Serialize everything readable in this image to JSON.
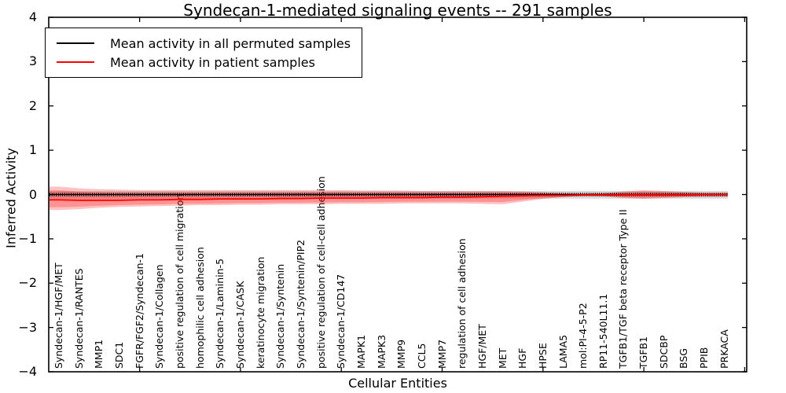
{
  "chart_data": {
    "type": "line",
    "title": "Syndecan-1-mediated signaling events -- 291 samples",
    "xlabel": "Cellular Entities",
    "ylabel": "Inferred Activity",
    "ylim": [
      -4,
      4
    ],
    "yticks": [
      4,
      3,
      2,
      1,
      0,
      -1,
      -2,
      -3,
      -4
    ],
    "xticks_entity_positions": [
      5,
      10,
      15,
      20,
      25,
      30,
      35
    ],
    "grid": false,
    "legend_position": "upper-left",
    "background_color": "#ffffff",
    "categories": [
      "Syndecan-1/HGF/MET",
      "Syndecan-1/RANTES",
      "MMP1",
      "SDC1",
      "FGFR/FGF2/Syndecan-1",
      "Syndecan-1/Collagen",
      "positive regulation of cell migration",
      "homophilic cell adhesion",
      "Syndecan-1/Laminin-5",
      "Syndecan-1/CASK",
      "keratinocyte migration",
      "Syndecan-1/Syntenin",
      "Syndecan-1/Syntenin/PIP2",
      "positive regulation of cell-cell adhesion",
      "Syndecan-1/CD147",
      "MAPK1",
      "MAPK3",
      "MMP9",
      "CCL5",
      "MMP7",
      "regulation of cell adhesion",
      "HGF/MET",
      "MET",
      "HGF",
      "HPSE",
      "LAMA5",
      "mol:PI-4-5-P2",
      "RP11-540L11.1",
      "TGFB1/TGF beta receptor Type II",
      "TGFB1",
      "SDCBP",
      "BSG",
      "PPIB",
      "PRKACA"
    ],
    "series": [
      {
        "name": "Mean activity in all permuted samples",
        "color": "#000000",
        "line_style": "solid-with-tick-markers",
        "band_color": "#999999",
        "band_opacity": 0.38,
        "values": [
          0,
          0,
          0,
          0,
          0,
          0,
          0,
          0,
          0,
          0,
          0,
          0,
          0,
          0,
          0,
          0,
          0,
          0,
          0,
          0,
          0,
          0,
          0,
          0,
          0,
          0,
          0,
          0,
          0,
          0,
          0,
          0,
          0,
          0
        ],
        "band_upper": [
          0.08,
          0.08,
          0.08,
          0.08,
          0.08,
          0.08,
          0.08,
          0.08,
          0.08,
          0.08,
          0.08,
          0.08,
          0.08,
          0.08,
          0.08,
          0.08,
          0.08,
          0.08,
          0.08,
          0.08,
          0.08,
          0.08,
          0.08,
          0.08,
          0.08,
          0.08,
          0.08,
          0.08,
          0.08,
          0.08,
          0.08,
          0.08,
          0.08,
          0.08
        ],
        "band_lower": [
          -0.09,
          -0.09,
          -0.09,
          -0.09,
          -0.09,
          -0.09,
          -0.09,
          -0.09,
          -0.09,
          -0.09,
          -0.09,
          -0.09,
          -0.09,
          -0.09,
          -0.09,
          -0.09,
          -0.09,
          -0.09,
          -0.09,
          -0.09,
          -0.09,
          -0.09,
          -0.09,
          -0.09,
          -0.09,
          -0.09,
          -0.09,
          -0.09,
          -0.09,
          -0.09,
          -0.09,
          -0.09,
          -0.09,
          -0.09
        ]
      },
      {
        "name": "Mean activity in patient samples",
        "color": "#ff0000",
        "line_style": "solid",
        "band_color": "#ff0000",
        "band_opacity": 0.24,
        "band_inner_scale": 0.72,
        "values": [
          -0.12,
          -0.13,
          -0.13,
          -0.13,
          -0.12,
          -0.12,
          -0.11,
          -0.11,
          -0.1,
          -0.1,
          -0.1,
          -0.09,
          -0.09,
          -0.08,
          -0.08,
          -0.08,
          -0.07,
          -0.07,
          -0.07,
          -0.06,
          -0.06,
          -0.05,
          -0.04,
          -0.03,
          -0.02,
          -0.02,
          -0.01,
          -0.01,
          -0.01,
          -0.01,
          -0.01,
          -0.01,
          0.0,
          0.0
        ],
        "band_upper": [
          0.18,
          0.14,
          0.12,
          0.11,
          0.1,
          0.1,
          0.1,
          0.1,
          0.1,
          0.1,
          0.1,
          0.1,
          0.1,
          0.1,
          0.1,
          0.09,
          0.09,
          0.09,
          0.08,
          0.08,
          0.08,
          0.08,
          0.08,
          0.07,
          0.05,
          0.03,
          0.02,
          0.03,
          0.07,
          0.1,
          0.08,
          0.06,
          0.04,
          0.04
        ],
        "band_lower": [
          -0.35,
          -0.33,
          -0.3,
          -0.28,
          -0.27,
          -0.26,
          -0.25,
          -0.24,
          -0.24,
          -0.23,
          -0.23,
          -0.22,
          -0.22,
          -0.22,
          -0.21,
          -0.21,
          -0.21,
          -0.2,
          -0.2,
          -0.2,
          -0.2,
          -0.21,
          -0.22,
          -0.16,
          -0.1,
          -0.06,
          -0.03,
          -0.04,
          -0.08,
          -0.1,
          -0.08,
          -0.06,
          -0.05,
          -0.05
        ]
      }
    ]
  }
}
